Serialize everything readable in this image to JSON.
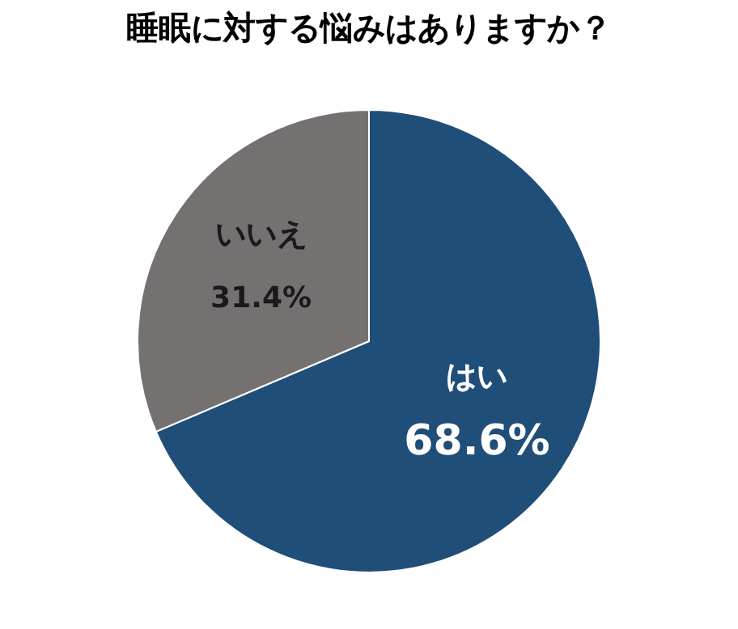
{
  "chart_data": {
    "type": "pie",
    "title": "睡眠に対する悩みはありますか？",
    "categories": [
      "はい",
      "いいえ"
    ],
    "values": [
      68.6,
      31.4
    ],
    "colors": [
      "#1f4e79",
      "#767171"
    ],
    "value_labels": [
      "68.6%",
      "31.4%"
    ],
    "legend": false
  }
}
